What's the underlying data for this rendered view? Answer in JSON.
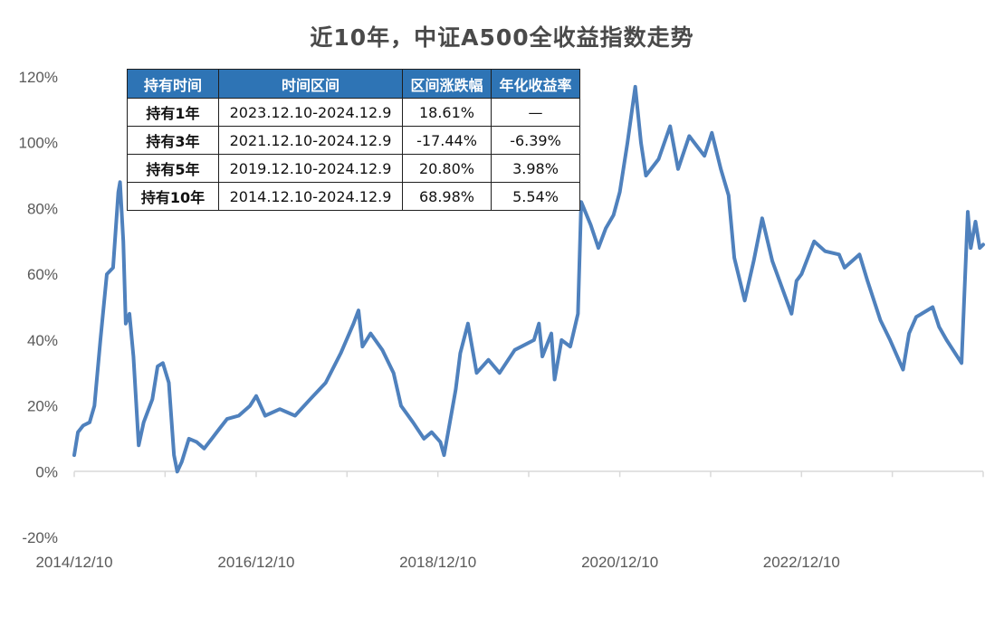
{
  "chart_data": {
    "type": "line",
    "title": "近10年，中证A500全收益指数走势",
    "x_tick_labels": [
      "2014/12/10",
      "2016/12/10",
      "2018/12/10",
      "2020/12/10",
      "2022/12/10"
    ],
    "y_tick_labels": [
      "120%",
      "100%",
      "80%",
      "60%",
      "40%",
      "20%",
      "0%",
      "-20%"
    ],
    "ylim": [
      -20,
      120
    ],
    "xlim": [
      "2014-12-10",
      "2024-12-09"
    ],
    "grid": false,
    "legend": "none",
    "line_color": "#4f81bd",
    "series": [
      {
        "points": [
          [
            "2014-12-10",
            5
          ],
          [
            "2014-12-25",
            12
          ],
          [
            "2015-01-15",
            14
          ],
          [
            "2015-02-10",
            15
          ],
          [
            "2015-03-01",
            20
          ],
          [
            "2015-03-25",
            40
          ],
          [
            "2015-04-20",
            60
          ],
          [
            "2015-05-15",
            62
          ],
          [
            "2015-06-05",
            85
          ],
          [
            "2015-06-12",
            88
          ],
          [
            "2015-06-25",
            70
          ],
          [
            "2015-07-05",
            45
          ],
          [
            "2015-07-20",
            48
          ],
          [
            "2015-08-05",
            35
          ],
          [
            "2015-08-26",
            8
          ],
          [
            "2015-09-15",
            15
          ],
          [
            "2015-10-20",
            22
          ],
          [
            "2015-11-10",
            32
          ],
          [
            "2015-12-01",
            33
          ],
          [
            "2015-12-25",
            27
          ],
          [
            "2016-01-15",
            5
          ],
          [
            "2016-01-28",
            0
          ],
          [
            "2016-02-15",
            3
          ],
          [
            "2016-03-15",
            10
          ],
          [
            "2016-04-15",
            9
          ],
          [
            "2016-05-15",
            7
          ],
          [
            "2016-06-15",
            10
          ],
          [
            "2016-07-15",
            13
          ],
          [
            "2016-08-15",
            16
          ],
          [
            "2016-10-01",
            17
          ],
          [
            "2016-11-15",
            20
          ],
          [
            "2016-12-10",
            23
          ],
          [
            "2017-01-15",
            17
          ],
          [
            "2017-03-15",
            19
          ],
          [
            "2017-05-15",
            17
          ],
          [
            "2017-07-15",
            22
          ],
          [
            "2017-09-15",
            27
          ],
          [
            "2017-11-15",
            36
          ],
          [
            "2018-01-05",
            45
          ],
          [
            "2018-01-25",
            49
          ],
          [
            "2018-02-10",
            38
          ],
          [
            "2018-03-15",
            42
          ],
          [
            "2018-05-01",
            37
          ],
          [
            "2018-06-15",
            30
          ],
          [
            "2018-07-15",
            20
          ],
          [
            "2018-09-01",
            15
          ],
          [
            "2018-10-15",
            10
          ],
          [
            "2018-11-15",
            12
          ],
          [
            "2018-12-20",
            9
          ],
          [
            "2019-01-04",
            5
          ],
          [
            "2019-02-20",
            25
          ],
          [
            "2019-03-10",
            36
          ],
          [
            "2019-04-10",
            45
          ],
          [
            "2019-05-15",
            30
          ],
          [
            "2019-07-01",
            34
          ],
          [
            "2019-08-15",
            30
          ],
          [
            "2019-10-15",
            37
          ],
          [
            "2019-12-31",
            40
          ],
          [
            "2020-01-20",
            45
          ],
          [
            "2020-02-03",
            35
          ],
          [
            "2020-03-10",
            42
          ],
          [
            "2020-03-23",
            28
          ],
          [
            "2020-04-20",
            40
          ],
          [
            "2020-05-25",
            38
          ],
          [
            "2020-06-25",
            48
          ],
          [
            "2020-07-08",
            82
          ],
          [
            "2020-08-15",
            75
          ],
          [
            "2020-09-15",
            68
          ],
          [
            "2020-10-15",
            74
          ],
          [
            "2020-11-15",
            78
          ],
          [
            "2020-12-10",
            85
          ],
          [
            "2021-01-10",
            100
          ],
          [
            "2021-02-10",
            117
          ],
          [
            "2021-03-05",
            100
          ],
          [
            "2021-03-25",
            90
          ],
          [
            "2021-05-15",
            95
          ],
          [
            "2021-06-30",
            105
          ],
          [
            "2021-08-01",
            92
          ],
          [
            "2021-09-15",
            102
          ],
          [
            "2021-11-15",
            96
          ],
          [
            "2021-12-15",
            103
          ],
          [
            "2022-01-20",
            92
          ],
          [
            "2022-02-20",
            84
          ],
          [
            "2022-03-15",
            65
          ],
          [
            "2022-04-26",
            52
          ],
          [
            "2022-06-01",
            64
          ],
          [
            "2022-07-05",
            77
          ],
          [
            "2022-08-15",
            64
          ],
          [
            "2022-10-31",
            48
          ],
          [
            "2022-11-20",
            58
          ],
          [
            "2022-12-10",
            60
          ],
          [
            "2023-01-30",
            70
          ],
          [
            "2023-03-15",
            67
          ],
          [
            "2023-05-10",
            66
          ],
          [
            "2023-06-01",
            62
          ],
          [
            "2023-07-31",
            66
          ],
          [
            "2023-09-01",
            58
          ],
          [
            "2023-10-23",
            46
          ],
          [
            "2023-12-01",
            40
          ],
          [
            "2024-01-22",
            31
          ],
          [
            "2024-02-15",
            42
          ],
          [
            "2024-03-15",
            47
          ],
          [
            "2024-05-20",
            50
          ],
          [
            "2024-06-15",
            44
          ],
          [
            "2024-07-15",
            40
          ],
          [
            "2024-09-13",
            33
          ],
          [
            "2024-10-08",
            79
          ],
          [
            "2024-10-20",
            68
          ],
          [
            "2024-11-08",
            76
          ],
          [
            "2024-11-25",
            68
          ],
          [
            "2024-12-09",
            69
          ]
        ]
      }
    ]
  },
  "table": {
    "headers": [
      "持有时间",
      "时间区间",
      "区间涨跌幅",
      "年化收益率"
    ],
    "rows": [
      [
        "持有1年",
        "2023.12.10-2024.12.9",
        "18.61%",
        "—"
      ],
      [
        "持有3年",
        "2021.12.10-2024.12.9",
        "-17.44%",
        "-6.39%"
      ],
      [
        "持有5年",
        "2019.12.10-2024.12.9",
        "20.80%",
        "3.98%"
      ],
      [
        "持有10年",
        "2014.12.10-2024.12.9",
        "68.98%",
        "5.54%"
      ]
    ]
  }
}
